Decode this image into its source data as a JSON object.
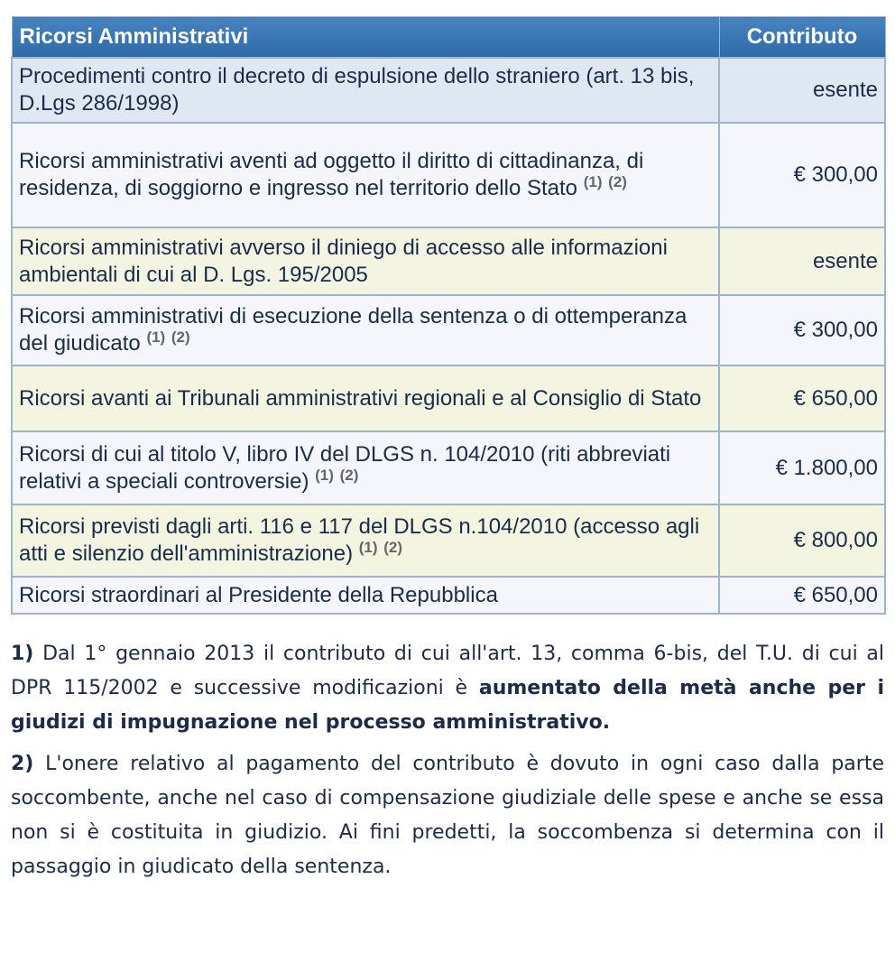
{
  "table": {
    "header": [
      "Ricorsi Amministrativi",
      "Contributo"
    ],
    "rows": [
      {
        "description": "Procedimenti contro il decreto di espulsione dello straniero (art. 13 bis, D.Lgs 286/1998)",
        "notes": [],
        "amount": "esente"
      },
      {
        "description": "Ricorsi amministrativi aventi ad oggetto il diritto di cittadinanza, di residenza, di soggiorno e ingresso nel territorio dello Stato",
        "notes": [
          "(1)",
          "(2)"
        ],
        "amount": "€ 300,00"
      },
      {
        "description": "Ricorsi amministrativi avverso il diniego di accesso alle informazioni ambientali di cui al D. Lgs. 195/2005",
        "notes": [],
        "amount": "esente"
      },
      {
        "description": "Ricorsi amministrativi di esecuzione della sentenza o di ottemperanza del giudicato",
        "notes": [
          "(1)",
          "(2)"
        ],
        "amount": "€ 300,00"
      },
      {
        "description": "Ricorsi avanti ai Tribunali amministrativi regionali e al Consiglio di Stato",
        "notes": [],
        "amount": "€ 650,00"
      },
      {
        "description": "Ricorsi di cui al titolo V, libro IV del DLGS n. 104/2010 (riti abbreviati relativi a speciali controversie)",
        "notes": [
          "(1)",
          "(2)"
        ],
        "amount": "€ 1.800,00"
      },
      {
        "description": "Ricorsi previsti dagli arti. 116 e 117 del DLGS n.104/2010 (accesso agli atti e silenzio dell'amministrazione)",
        "notes": [
          "(1)",
          "(2)"
        ],
        "amount": "€ 800,00"
      },
      {
        "description": "Ricorsi straordinari al Presidente della Repubblica",
        "notes": [],
        "amount": "€ 650,00"
      }
    ]
  },
  "footnotes": [
    {
      "marker": "1)",
      "text": "Dal 1° gennaio 2013 il contributo di cui all'art. 13, comma 6-bis, del T.U. di cui al DPR 115/2002 e successive modificazioni è",
      "bold": "aumentato della metà anche per i giudizi di impugnazione nel processo amministrativo."
    },
    {
      "marker": "2)",
      "text": "L'onere relativo al pagamento del contributo è dovuto in ogni caso dalla parte soccombente, anche nel caso di compensazione giudiziale delle spese e anche se essa non si è costituita in giudizio. Ai fini predetti, la soccombenza si determina con il passaggio in giudicato della sentenza."
    }
  ]
}
